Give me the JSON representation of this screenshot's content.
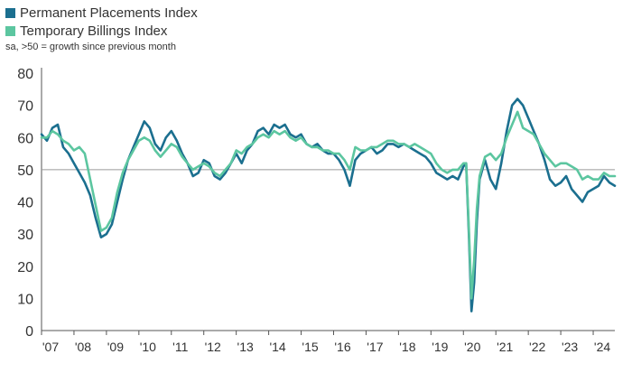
{
  "chart_data": {
    "type": "line",
    "title": "",
    "subtitle": "sa, >50 = growth since previous month",
    "xlabel": "",
    "ylabel": "",
    "ylim": [
      0,
      80
    ],
    "yticks": [
      0,
      10,
      20,
      30,
      40,
      50,
      60,
      70,
      80
    ],
    "xrange": [
      "2007-01",
      "2024-09"
    ],
    "xtick_labels": [
      "'07",
      "'08",
      "'09",
      "'10",
      "'11",
      "'12",
      "'13",
      "'14",
      "'15",
      "'16",
      "'17",
      "'18",
      "'19",
      "'20",
      "'21",
      "'22",
      "'23",
      "'24"
    ],
    "reference_line": 50,
    "grid": false,
    "legend_position": "top-left",
    "series": [
      {
        "name": "Permanent Placements Index",
        "color": "#1b6f8f",
        "points": [
          [
            "2007-01",
            61
          ],
          [
            "2007-03",
            59
          ],
          [
            "2007-05",
            63
          ],
          [
            "2007-07",
            64
          ],
          [
            "2007-09",
            57
          ],
          [
            "2007-11",
            55
          ],
          [
            "2008-01",
            52
          ],
          [
            "2008-03",
            49
          ],
          [
            "2008-05",
            46
          ],
          [
            "2008-07",
            42
          ],
          [
            "2008-09",
            35
          ],
          [
            "2008-11",
            29
          ],
          [
            "2009-01",
            30
          ],
          [
            "2009-03",
            33
          ],
          [
            "2009-05",
            40
          ],
          [
            "2009-07",
            47
          ],
          [
            "2009-09",
            53
          ],
          [
            "2009-11",
            57
          ],
          [
            "2010-01",
            61
          ],
          [
            "2010-03",
            65
          ],
          [
            "2010-05",
            63
          ],
          [
            "2010-07",
            58
          ],
          [
            "2010-09",
            56
          ],
          [
            "2010-11",
            60
          ],
          [
            "2011-01",
            62
          ],
          [
            "2011-03",
            59
          ],
          [
            "2011-05",
            55
          ],
          [
            "2011-07",
            52
          ],
          [
            "2011-09",
            48
          ],
          [
            "2011-11",
            49
          ],
          [
            "2012-01",
            53
          ],
          [
            "2012-03",
            52
          ],
          [
            "2012-05",
            48
          ],
          [
            "2012-07",
            47
          ],
          [
            "2012-09",
            49
          ],
          [
            "2012-11",
            52
          ],
          [
            "2013-01",
            55
          ],
          [
            "2013-03",
            52
          ],
          [
            "2013-05",
            56
          ],
          [
            "2013-07",
            58
          ],
          [
            "2013-09",
            62
          ],
          [
            "2013-11",
            63
          ],
          [
            "2014-01",
            61
          ],
          [
            "2014-03",
            64
          ],
          [
            "2014-05",
            63
          ],
          [
            "2014-07",
            64
          ],
          [
            "2014-09",
            61
          ],
          [
            "2014-11",
            60
          ],
          [
            "2015-01",
            61
          ],
          [
            "2015-03",
            58
          ],
          [
            "2015-05",
            57
          ],
          [
            "2015-07",
            58
          ],
          [
            "2015-09",
            56
          ],
          [
            "2015-11",
            55
          ],
          [
            "2016-01",
            55
          ],
          [
            "2016-03",
            53
          ],
          [
            "2016-05",
            50
          ],
          [
            "2016-07",
            45
          ],
          [
            "2016-09",
            53
          ],
          [
            "2016-11",
            55
          ],
          [
            "2017-01",
            56
          ],
          [
            "2017-03",
            57
          ],
          [
            "2017-05",
            55
          ],
          [
            "2017-07",
            56
          ],
          [
            "2017-09",
            58
          ],
          [
            "2017-11",
            58
          ],
          [
            "2018-01",
            57
          ],
          [
            "2018-03",
            58
          ],
          [
            "2018-05",
            57
          ],
          [
            "2018-07",
            56
          ],
          [
            "2018-09",
            55
          ],
          [
            "2018-11",
            54
          ],
          [
            "2019-01",
            52
          ],
          [
            "2019-03",
            49
          ],
          [
            "2019-05",
            48
          ],
          [
            "2019-07",
            47
          ],
          [
            "2019-09",
            48
          ],
          [
            "2019-11",
            47
          ],
          [
            "2020-01",
            51
          ],
          [
            "2020-02",
            52
          ],
          [
            "2020-03",
            30
          ],
          [
            "2020-04",
            6
          ],
          [
            "2020-05",
            15
          ],
          [
            "2020-06",
            34
          ],
          [
            "2020-07",
            47
          ],
          [
            "2020-09",
            53
          ],
          [
            "2020-11",
            47
          ],
          [
            "2021-01",
            44
          ],
          [
            "2021-03",
            52
          ],
          [
            "2021-05",
            62
          ],
          [
            "2021-07",
            70
          ],
          [
            "2021-09",
            72
          ],
          [
            "2021-11",
            70
          ],
          [
            "2022-01",
            66
          ],
          [
            "2022-03",
            62
          ],
          [
            "2022-05",
            58
          ],
          [
            "2022-07",
            53
          ],
          [
            "2022-09",
            47
          ],
          [
            "2022-11",
            45
          ],
          [
            "2023-01",
            46
          ],
          [
            "2023-03",
            48
          ],
          [
            "2023-05",
            44
          ],
          [
            "2023-07",
            42
          ],
          [
            "2023-09",
            40
          ],
          [
            "2023-11",
            43
          ],
          [
            "2024-01",
            44
          ],
          [
            "2024-03",
            45
          ],
          [
            "2024-05",
            48
          ],
          [
            "2024-07",
            46
          ],
          [
            "2024-09",
            45
          ]
        ]
      },
      {
        "name": "Temporary Billings Index",
        "color": "#5cc6a0",
        "points": [
          [
            "2007-01",
            60
          ],
          [
            "2007-03",
            60
          ],
          [
            "2007-05",
            62
          ],
          [
            "2007-07",
            61
          ],
          [
            "2007-09",
            59
          ],
          [
            "2007-11",
            58
          ],
          [
            "2008-01",
            56
          ],
          [
            "2008-03",
            57
          ],
          [
            "2008-05",
            55
          ],
          [
            "2008-07",
            47
          ],
          [
            "2008-09",
            39
          ],
          [
            "2008-11",
            31
          ],
          [
            "2009-01",
            32
          ],
          [
            "2009-03",
            35
          ],
          [
            "2009-05",
            43
          ],
          [
            "2009-07",
            49
          ],
          [
            "2009-09",
            53
          ],
          [
            "2009-11",
            56
          ],
          [
            "2010-01",
            59
          ],
          [
            "2010-03",
            60
          ],
          [
            "2010-05",
            59
          ],
          [
            "2010-07",
            56
          ],
          [
            "2010-09",
            54
          ],
          [
            "2010-11",
            56
          ],
          [
            "2011-01",
            58
          ],
          [
            "2011-03",
            57
          ],
          [
            "2011-05",
            54
          ],
          [
            "2011-07",
            52
          ],
          [
            "2011-09",
            50
          ],
          [
            "2011-11",
            51
          ],
          [
            "2012-01",
            52
          ],
          [
            "2012-03",
            51
          ],
          [
            "2012-05",
            49
          ],
          [
            "2012-07",
            48
          ],
          [
            "2012-09",
            50
          ],
          [
            "2012-11",
            52
          ],
          [
            "2013-01",
            56
          ],
          [
            "2013-03",
            55
          ],
          [
            "2013-05",
            57
          ],
          [
            "2013-07",
            58
          ],
          [
            "2013-09",
            60
          ],
          [
            "2013-11",
            61
          ],
          [
            "2014-01",
            60
          ],
          [
            "2014-03",
            62
          ],
          [
            "2014-05",
            61
          ],
          [
            "2014-07",
            62
          ],
          [
            "2014-09",
            60
          ],
          [
            "2014-11",
            59
          ],
          [
            "2015-01",
            60
          ],
          [
            "2015-03",
            58
          ],
          [
            "2015-05",
            57
          ],
          [
            "2015-07",
            57
          ],
          [
            "2015-09",
            56
          ],
          [
            "2015-11",
            56
          ],
          [
            "2016-01",
            55
          ],
          [
            "2016-03",
            55
          ],
          [
            "2016-05",
            53
          ],
          [
            "2016-07",
            50
          ],
          [
            "2016-09",
            57
          ],
          [
            "2016-11",
            56
          ],
          [
            "2017-01",
            56
          ],
          [
            "2017-03",
            57
          ],
          [
            "2017-05",
            57
          ],
          [
            "2017-07",
            58
          ],
          [
            "2017-09",
            59
          ],
          [
            "2017-11",
            59
          ],
          [
            "2018-01",
            58
          ],
          [
            "2018-03",
            58
          ],
          [
            "2018-05",
            57
          ],
          [
            "2018-07",
            58
          ],
          [
            "2018-09",
            57
          ],
          [
            "2018-11",
            56
          ],
          [
            "2019-01",
            55
          ],
          [
            "2019-03",
            52
          ],
          [
            "2019-05",
            50
          ],
          [
            "2019-07",
            49
          ],
          [
            "2019-09",
            50
          ],
          [
            "2019-11",
            50
          ],
          [
            "2020-01",
            52
          ],
          [
            "2020-02",
            52
          ],
          [
            "2020-03",
            32
          ],
          [
            "2020-04",
            10
          ],
          [
            "2020-05",
            22
          ],
          [
            "2020-06",
            38
          ],
          [
            "2020-07",
            48
          ],
          [
            "2020-09",
            54
          ],
          [
            "2020-11",
            55
          ],
          [
            "2021-01",
            53
          ],
          [
            "2021-03",
            55
          ],
          [
            "2021-05",
            60
          ],
          [
            "2021-07",
            64
          ],
          [
            "2021-09",
            68
          ],
          [
            "2021-11",
            63
          ],
          [
            "2022-01",
            62
          ],
          [
            "2022-03",
            61
          ],
          [
            "2022-05",
            58
          ],
          [
            "2022-07",
            55
          ],
          [
            "2022-09",
            53
          ],
          [
            "2022-11",
            51
          ],
          [
            "2023-01",
            52
          ],
          [
            "2023-03",
            52
          ],
          [
            "2023-05",
            51
          ],
          [
            "2023-07",
            50
          ],
          [
            "2023-09",
            47
          ],
          [
            "2023-11",
            48
          ],
          [
            "2024-01",
            47
          ],
          [
            "2024-03",
            47
          ],
          [
            "2024-05",
            49
          ],
          [
            "2024-07",
            48
          ],
          [
            "2024-09",
            48
          ]
        ]
      }
    ]
  }
}
